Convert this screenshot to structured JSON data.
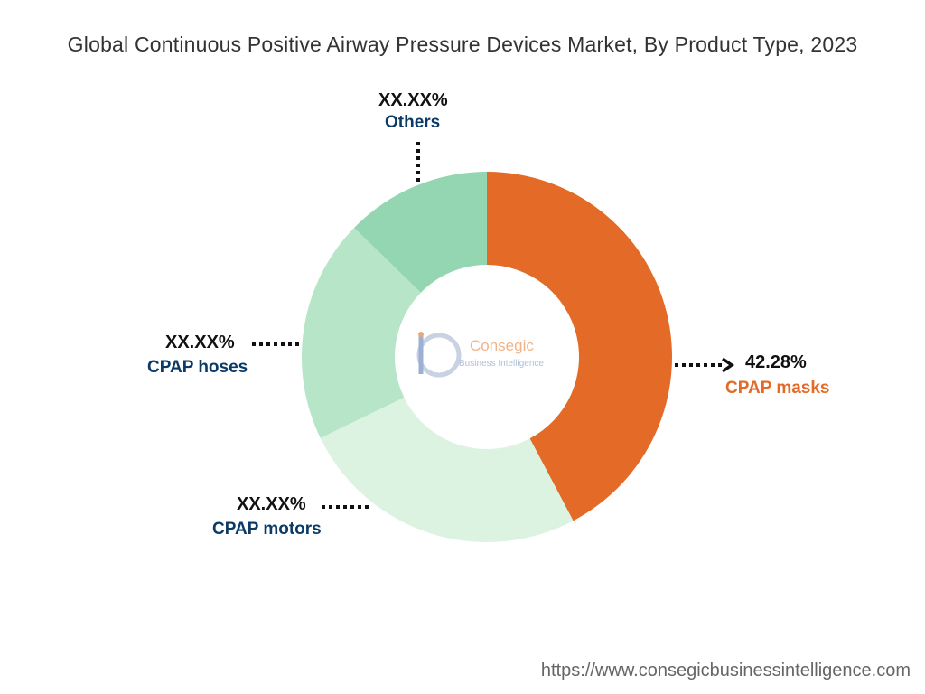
{
  "title": "Global Continuous Positive Airway Pressure Devices Market, By Product Type, 2023",
  "chart_data": {
    "type": "pie",
    "subtype": "donut",
    "title": "Global Continuous Positive Airway Pressure Devices Market, By Product Type, 2023",
    "slices": [
      {
        "name": "CPAP masks",
        "value": 42.28,
        "label": "42.28%",
        "color": "#E36A27",
        "label_color": "#E36A27"
      },
      {
        "name": "CPAP motors",
        "value": 25.5,
        "label": "XX.XX%",
        "color": "#DDF3E1",
        "label_color": "#0B3A66"
      },
      {
        "name": "CPAP hoses",
        "value": 19.5,
        "label": "XX.XX%",
        "color": "#B6E5C7",
        "label_color": "#0B3A66"
      },
      {
        "name": "Others",
        "value": 12.72,
        "label": "XX.XX%",
        "color": "#93D6B1",
        "label_color": "#0B3A66"
      }
    ]
  },
  "logo": {
    "brand": "Consegic",
    "tagline": "Business Intelligence"
  },
  "footer_url": "https://www.consegicbusinessintelligence.com"
}
